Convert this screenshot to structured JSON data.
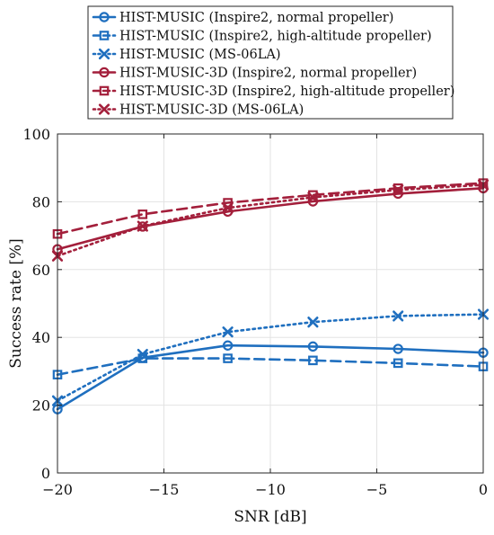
{
  "chart_data": {
    "type": "line",
    "title": "",
    "xlabel": "SNR [dB]",
    "ylabel": "Success rate [%]",
    "x": [
      -20,
      -16,
      -12,
      -8,
      -4,
      0
    ],
    "xlim": [
      -20,
      0
    ],
    "ylim": [
      0,
      100
    ],
    "xticks": [
      -20,
      -15,
      -10,
      -5,
      0
    ],
    "xtick_labels": [
      "−20",
      "−15",
      "−10",
      "−5",
      "0"
    ],
    "yticks": [
      0,
      20,
      40,
      60,
      80,
      100
    ],
    "ytick_labels": [
      "0",
      "20",
      "40",
      "60",
      "80",
      "100"
    ],
    "grid": true,
    "legend_position": "top-center",
    "series": [
      {
        "name": "HIST-MUSIC (Inspire2, normal propeller)",
        "color": "#1f6fbf",
        "line_style": "solid",
        "marker": "circle",
        "values": [
          18.8,
          34.0,
          37.6,
          37.3,
          36.6,
          35.5
        ]
      },
      {
        "name": "HIST-MUSIC (Inspire2, high-altitude propeller)",
        "color": "#1f6fbf",
        "line_style": "dashed",
        "marker": "square",
        "values": [
          29.0,
          33.8,
          33.8,
          33.2,
          32.4,
          31.4
        ]
      },
      {
        "name": "HIST-MUSIC (MS-06LA)",
        "color": "#1f6fbf",
        "line_style": "dotted",
        "marker": "x",
        "values": [
          21.3,
          35.0,
          41.6,
          44.5,
          46.3,
          46.8
        ]
      },
      {
        "name": "HIST-MUSIC-3D (Inspire2, normal propeller)",
        "color": "#a31f3b",
        "line_style": "solid",
        "marker": "circle",
        "values": [
          66.0,
          72.7,
          77.1,
          80.1,
          82.4,
          84.0
        ]
      },
      {
        "name": "HIST-MUSIC-3D (Inspire2, high-altitude propeller)",
        "color": "#a31f3b",
        "line_style": "dashed",
        "marker": "square",
        "values": [
          70.5,
          76.3,
          79.7,
          82.0,
          84.0,
          85.5
        ]
      },
      {
        "name": "HIST-MUSIC-3D (MS-06LA)",
        "color": "#a31f3b",
        "line_style": "dotted",
        "marker": "x",
        "values": [
          64.0,
          72.8,
          78.2,
          81.3,
          83.5,
          85.0
        ]
      }
    ]
  }
}
